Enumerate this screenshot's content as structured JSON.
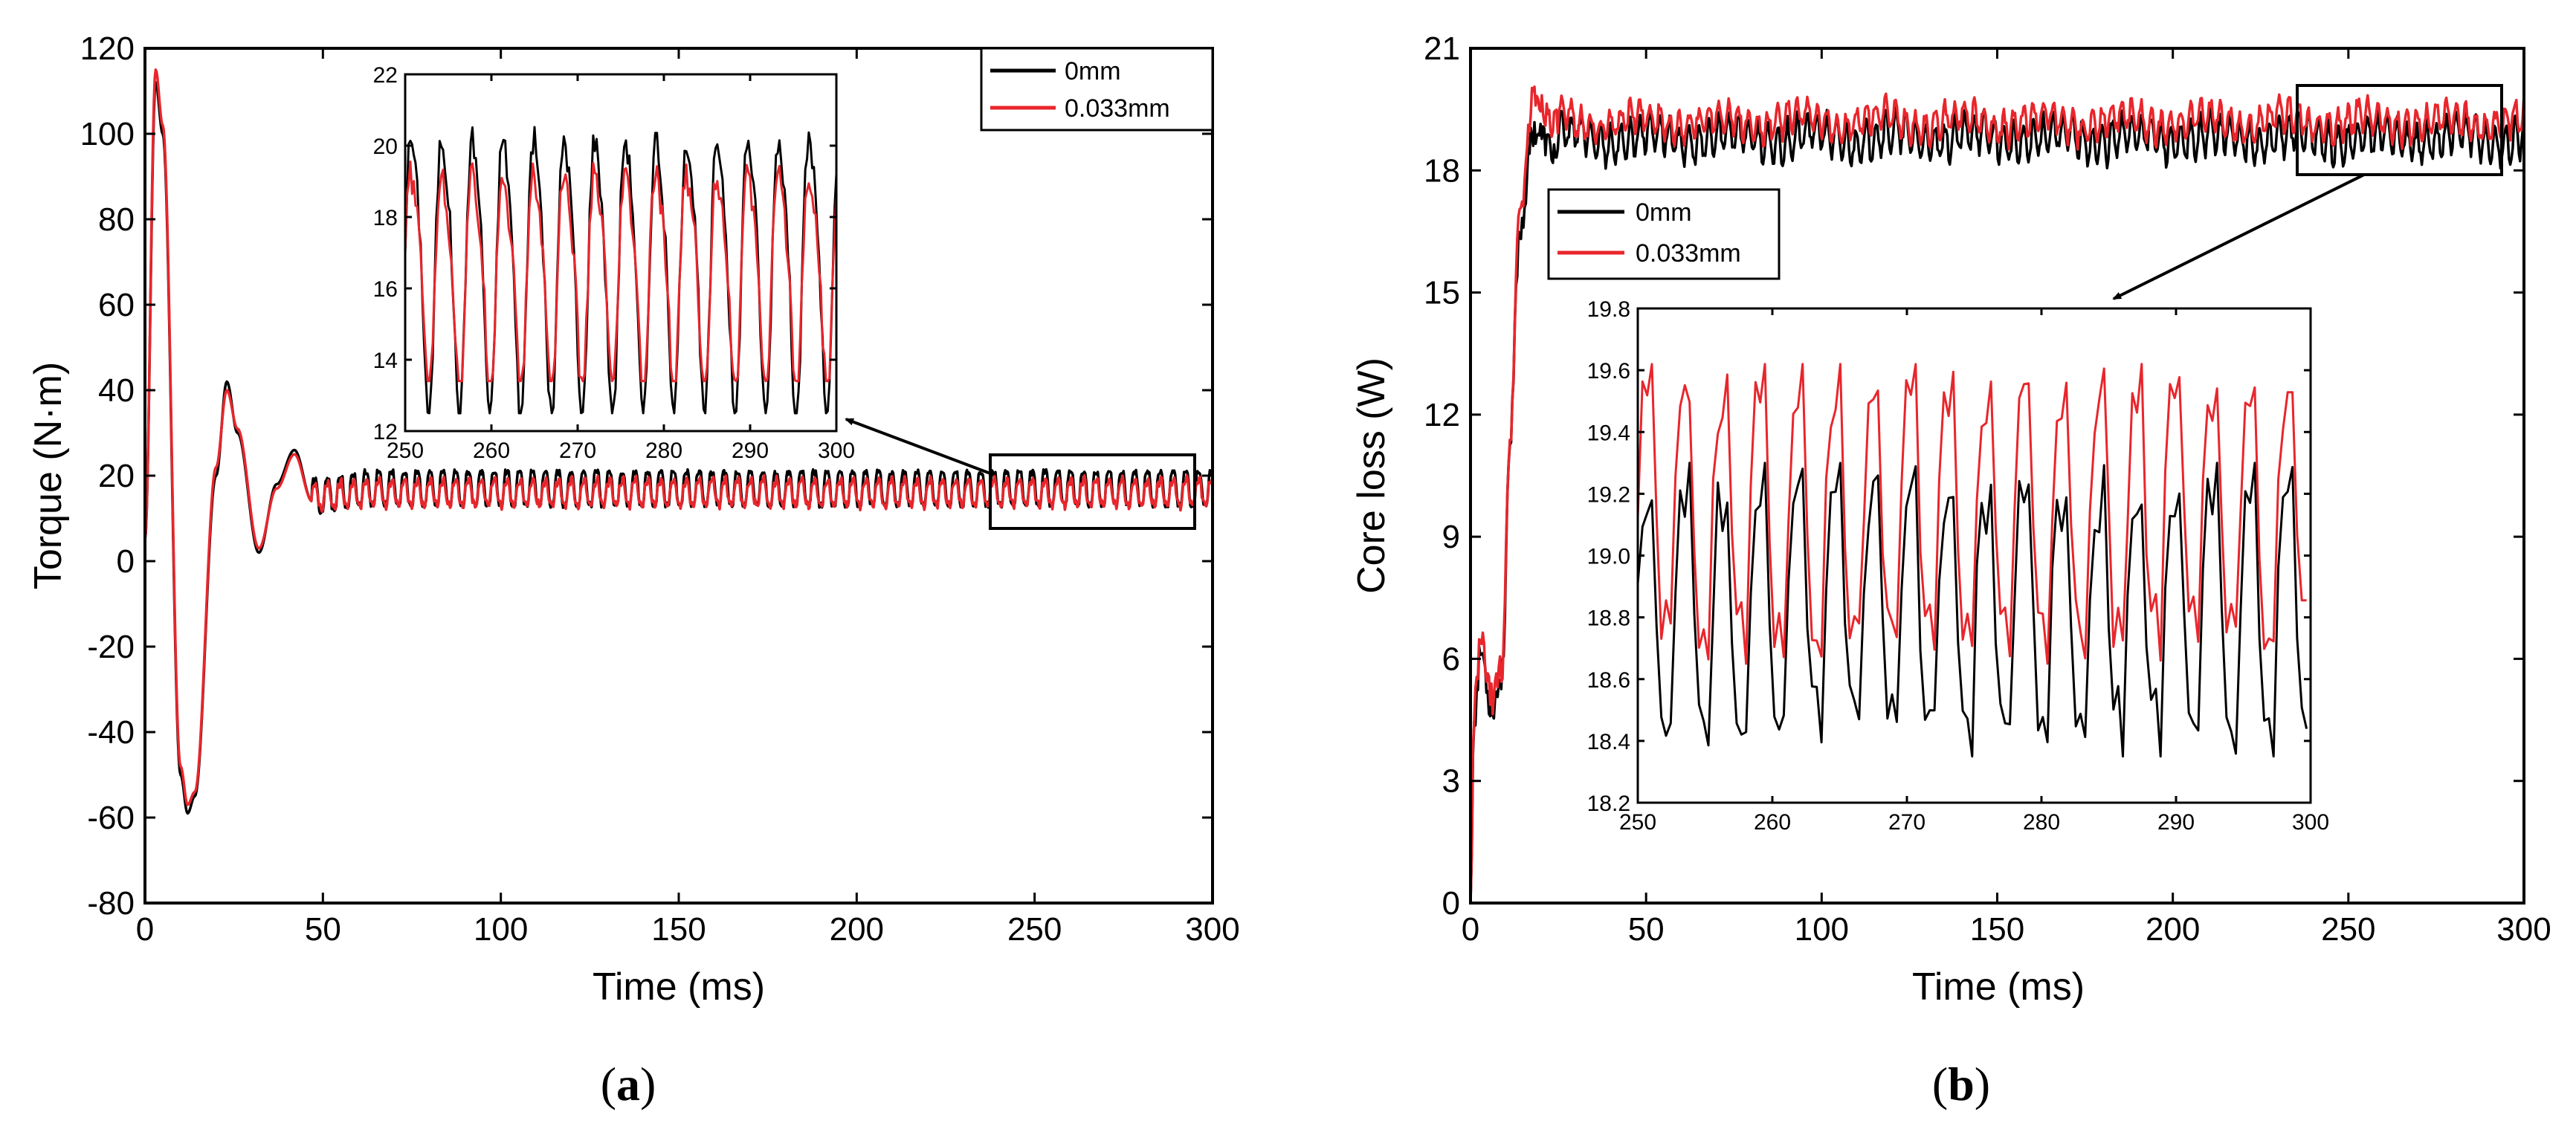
{
  "colors": {
    "series_0mm": "#000000",
    "series_0033mm": "#e8262c",
    "axis": "#000000"
  },
  "chart_data": [
    {
      "panel": "(a)",
      "panel_letter": "a",
      "type": "line",
      "xlabel": "Time (ms)",
      "ylabel": "Torque (N·m)",
      "xlim": [
        0,
        300
      ],
      "ylim": [
        -80,
        120
      ],
      "xticks": [
        0,
        50,
        100,
        150,
        200,
        250,
        300
      ],
      "yticks": [
        -80,
        -60,
        -40,
        -20,
        0,
        20,
        40,
        60,
        80,
        100,
        120
      ],
      "legend": {
        "placement": "top-right",
        "entries": [
          "0mm",
          "0.033mm"
        ]
      },
      "series": [
        {
          "name": "0mm",
          "description": "damped oscillation settling to ~17 N·m with ripple",
          "key_points": [
            [
              0,
              5
            ],
            [
              3,
              112
            ],
            [
              5,
              100
            ],
            [
              10,
              -50
            ],
            [
              12,
              -59
            ],
            [
              14,
              -55
            ],
            [
              20,
              20
            ],
            [
              23,
              42
            ],
            [
              26,
              30
            ],
            [
              32,
              2
            ],
            [
              37,
              18
            ],
            [
              42,
              26
            ],
            [
              47,
              14
            ],
            [
              300,
              17
            ]
          ],
          "steady_mean": 17,
          "ripple_amplitude": 4.5,
          "ripple_period_ms": 3.6
        },
        {
          "name": "0.033mm",
          "description": "damped oscillation settling to ~16 N·m with smaller ripple",
          "key_points": [
            [
              0,
              5
            ],
            [
              3,
              115
            ],
            [
              5,
              102
            ],
            [
              10,
              -48
            ],
            [
              12,
              -57
            ],
            [
              14,
              -54
            ],
            [
              20,
              22
            ],
            [
              23,
              40
            ],
            [
              26,
              31
            ],
            [
              32,
              3
            ],
            [
              37,
              17
            ],
            [
              42,
              25
            ],
            [
              47,
              14
            ],
            [
              300,
              16
            ]
          ],
          "steady_mean": 16,
          "ripple_amplitude": 3.2,
          "ripple_period_ms": 3.6
        }
      ],
      "zoom_box": {
        "xlim": [
          240,
          300
        ],
        "ylim": [
          8,
          25
        ]
      },
      "inset": {
        "xlim": [
          250,
          300
        ],
        "ylim": [
          12,
          22
        ],
        "xticks": [
          250,
          260,
          270,
          280,
          290,
          300
        ],
        "yticks": [
          12,
          14,
          16,
          18,
          20,
          22
        ],
        "series": [
          {
            "name": "0mm",
            "mean": 16.7,
            "amplitude": 3.8,
            "period_ms": 3.55,
            "min_value": 12.5,
            "max_value": 20.9
          },
          {
            "name": "0.033mm",
            "mean": 16.5,
            "amplitude": 2.9,
            "period_ms": 3.55,
            "min_value": 13.4,
            "max_value": 20.1
          }
        ]
      }
    },
    {
      "panel": "(b)",
      "panel_letter": "b",
      "type": "line",
      "xlabel": "Time (ms)",
      "ylabel": "Core loss (W)",
      "xlim": [
        0,
        300
      ],
      "ylim": [
        0,
        21
      ],
      "xticks": [
        0,
        50,
        100,
        150,
        200,
        250,
        300
      ],
      "yticks": [
        0,
        3,
        6,
        9,
        12,
        15,
        18,
        21
      ],
      "legend": {
        "placement": "upper-left",
        "entries": [
          "0mm",
          "0.033mm"
        ]
      },
      "series": [
        {
          "name": "0mm",
          "description": "rises from 0 to plateau near 18.8 W",
          "key_points": [
            [
              0,
              0
            ],
            [
              1,
              4.6
            ],
            [
              3,
              6.2
            ],
            [
              6,
              4.8
            ],
            [
              9,
              5.6
            ],
            [
              11,
              10.8
            ],
            [
              14,
              16.5
            ],
            [
              18,
              19.0
            ],
            [
              25,
              18.4
            ],
            [
              300,
              18.8
            ]
          ],
          "steady_mean": 18.8,
          "ripple_amplitude": 0.45
        },
        {
          "name": "0.033mm",
          "description": "rises from 0 to plateau near 19.2 W",
          "key_points": [
            [
              0,
              0
            ],
            [
              1,
              4.8
            ],
            [
              3,
              6.4
            ],
            [
              6,
              5.0
            ],
            [
              9,
              5.8
            ],
            [
              11,
              11.0
            ],
            [
              14,
              17.0
            ],
            [
              18,
              19.8
            ],
            [
              25,
              19.1
            ],
            [
              300,
              19.2
            ]
          ],
          "steady_mean": 19.2,
          "ripple_amplitude": 0.35
        }
      ],
      "zoom_box": {
        "xlim": [
          235,
          298
        ],
        "ylim": [
          18,
          20.2
        ]
      },
      "inset": {
        "xlim": [
          250,
          300
        ],
        "ylim": [
          18.2,
          19.8
        ],
        "xticks": [
          250,
          260,
          270,
          280,
          290,
          300
        ],
        "yticks": [
          18.2,
          18.4,
          18.6,
          18.8,
          19.0,
          19.2,
          19.4,
          19.6,
          19.8
        ],
        "ytick_labels": [
          "18.2",
          "18.4",
          "18.6",
          "18.8",
          "19.0",
          "19.2",
          "19.4",
          "19.6",
          "19.8"
        ],
        "series": [
          {
            "name": "0mm",
            "mean": 18.83,
            "amplitude": 0.43,
            "period_ms": 2.8,
            "min_value": 18.35,
            "max_value": 19.3
          },
          {
            "name": "0.033mm",
            "mean": 19.13,
            "amplitude": 0.45,
            "period_ms": 2.8,
            "min_value": 18.65,
            "max_value": 19.62
          }
        ]
      }
    }
  ]
}
